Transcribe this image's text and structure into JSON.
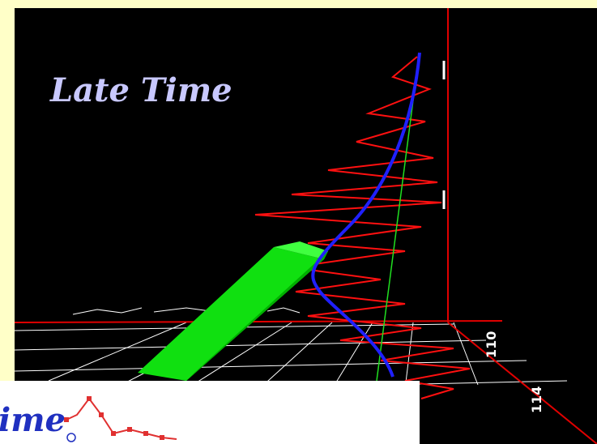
{
  "title": "Late Time",
  "logo": {
    "text": "ime"
  },
  "axis_labels": [
    "110",
    "114"
  ]
}
